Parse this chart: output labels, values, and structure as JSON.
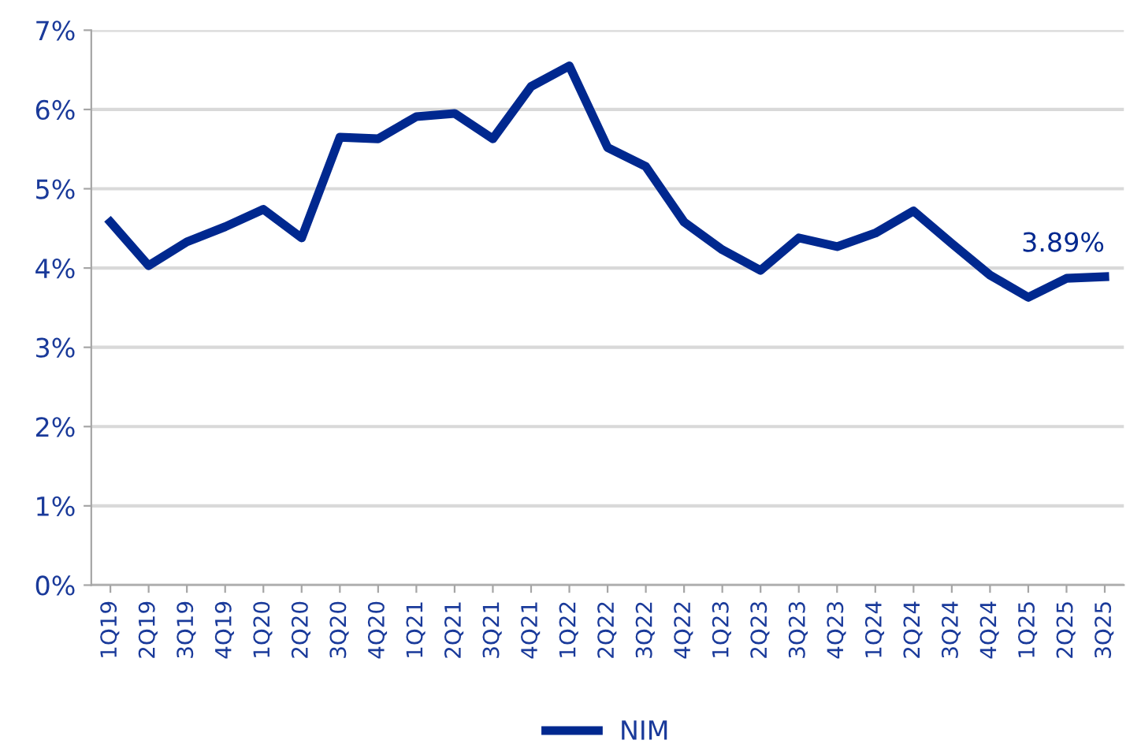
{
  "chart_data": {
    "type": "line",
    "categories": [
      "1Q19",
      "2Q19",
      "3Q19",
      "4Q19",
      "1Q20",
      "2Q20",
      "3Q20",
      "4Q20",
      "1Q21",
      "2Q21",
      "3Q21",
      "4Q21",
      "1Q22",
      "2Q22",
      "3Q22",
      "4Q22",
      "1Q23",
      "2Q23",
      "3Q23",
      "4Q23",
      "1Q24",
      "2Q24",
      "3Q24",
      "4Q24",
      "1Q25",
      "2Q25",
      "3Q25"
    ],
    "series": [
      {
        "name": "NIM",
        "color": "#00288f",
        "values": [
          4.58,
          4.03,
          4.33,
          4.52,
          4.74,
          4.38,
          5.65,
          5.63,
          5.91,
          5.95,
          5.63,
          6.29,
          6.55,
          5.52,
          5.28,
          4.58,
          4.23,
          3.97,
          4.38,
          4.27,
          4.44,
          4.72,
          4.31,
          3.91,
          3.63,
          3.87,
          3.89
        ],
        "value_labels": [
          null,
          null,
          null,
          null,
          null,
          null,
          null,
          null,
          null,
          null,
          null,
          null,
          null,
          null,
          null,
          null,
          null,
          null,
          null,
          null,
          null,
          null,
          null,
          null,
          null,
          null,
          "3.89%"
        ]
      }
    ],
    "ylim": [
      0,
      7
    ],
    "yticks": [
      {
        "value": 0,
        "label": "0%"
      },
      {
        "value": 1,
        "label": "1%"
      },
      {
        "value": 2,
        "label": "2%"
      },
      {
        "value": 3,
        "label": "3%"
      },
      {
        "value": 4,
        "label": "4%"
      },
      {
        "value": 5,
        "label": "5%"
      },
      {
        "value": 6,
        "label": "6%"
      },
      {
        "value": 7,
        "label": "7%"
      }
    ],
    "grid": "y",
    "legend": "bottom",
    "marker": "none",
    "line_style": "solid"
  }
}
